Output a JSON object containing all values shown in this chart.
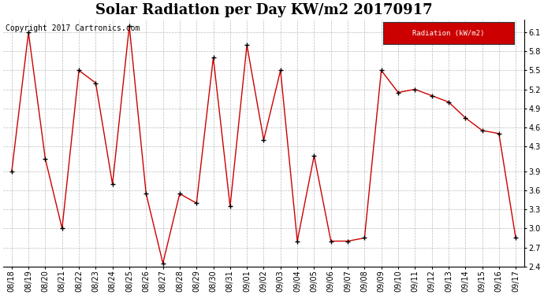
{
  "title": "Solar Radiation per Day KW/m2 20170917",
  "copyright_text": "Copyright 2017 Cartronics.com",
  "legend_label": "Radiation (kW/m2)",
  "dates": [
    "08/18",
    "08/19",
    "08/20",
    "08/21",
    "08/22",
    "08/23",
    "08/24",
    "08/25",
    "08/26",
    "08/27",
    "08/28",
    "08/29",
    "08/30",
    "08/31",
    "09/01",
    "09/02",
    "09/03",
    "09/04",
    "09/05",
    "09/06",
    "09/07",
    "09/08",
    "09/09",
    "09/10",
    "09/11",
    "09/12",
    "09/13",
    "09/14",
    "09/15",
    "09/16",
    "09/17"
  ],
  "values": [
    3.9,
    6.1,
    4.1,
    3.0,
    5.5,
    5.3,
    3.7,
    6.2,
    3.55,
    2.45,
    3.55,
    3.4,
    5.7,
    3.35,
    5.9,
    4.4,
    5.5,
    2.8,
    4.15,
    2.8,
    2.8,
    2.85,
    5.5,
    5.15,
    5.2,
    5.1,
    5.0,
    4.75,
    4.55,
    4.5,
    2.85
  ],
  "line_color": "#cc0000",
  "marker_color": "#000000",
  "bg_color": "#ffffff",
  "grid_color": "#aaaaaa",
  "legend_bg": "#cc0000",
  "legend_text_color": "#ffffff",
  "ylim_min": 2.4,
  "ylim_max": 6.3,
  "yticks": [
    2.4,
    2.7,
    3.0,
    3.3,
    3.6,
    3.9,
    4.3,
    4.6,
    4.9,
    5.2,
    5.5,
    5.8,
    6.1
  ],
  "title_fontsize": 13,
  "tick_fontsize": 7,
  "copyright_fontsize": 7
}
